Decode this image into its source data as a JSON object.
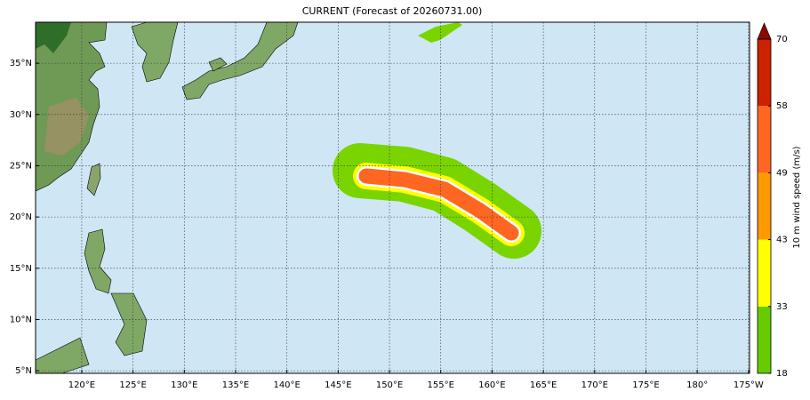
{
  "map": {
    "title": "CURRENT (Forecast of 20260731.00)",
    "lonlim": [
      115.5,
      185.1
    ],
    "latlim": [
      4.75,
      39
    ],
    "lon_ticks": [
      {
        "value": 120,
        "label": "120°E"
      },
      {
        "value": 125,
        "label": "125°E"
      },
      {
        "value": 130,
        "label": "130°E"
      },
      {
        "value": 135,
        "label": "135°E"
      },
      {
        "value": 140,
        "label": "140°E"
      },
      {
        "value": 145,
        "label": "145°E"
      },
      {
        "value": 150,
        "label": "150°E"
      },
      {
        "value": 155,
        "label": "155°E"
      },
      {
        "value": 160,
        "label": "160°E"
      },
      {
        "value": 165,
        "label": "165°E"
      },
      {
        "value": 170,
        "label": "170°E"
      },
      {
        "value": 175,
        "label": "175°E"
      },
      {
        "value": 180,
        "label": "180°"
      },
      {
        "value": 185,
        "label": "175°W"
      }
    ],
    "lat_ticks": [
      {
        "value": 5,
        "label": "5°N"
      },
      {
        "value": 10,
        "label": "10°N"
      },
      {
        "value": 15,
        "label": "15°N"
      },
      {
        "value": 20,
        "label": "20°N"
      },
      {
        "value": 25,
        "label": "25°N"
      },
      {
        "value": 30,
        "label": "30°N"
      },
      {
        "value": 35,
        "label": "35°N"
      }
    ],
    "grid": true,
    "colorbar": {
      "label": "10 m wind speed (m/s)",
      "levels": [
        18,
        33,
        43,
        49,
        58,
        70
      ],
      "colors": [
        "#66cc00",
        "#ffff00",
        "#ff9900",
        "#ff6622",
        "#cc2200"
      ],
      "extend_color": "#8b0a00"
    }
  }
}
